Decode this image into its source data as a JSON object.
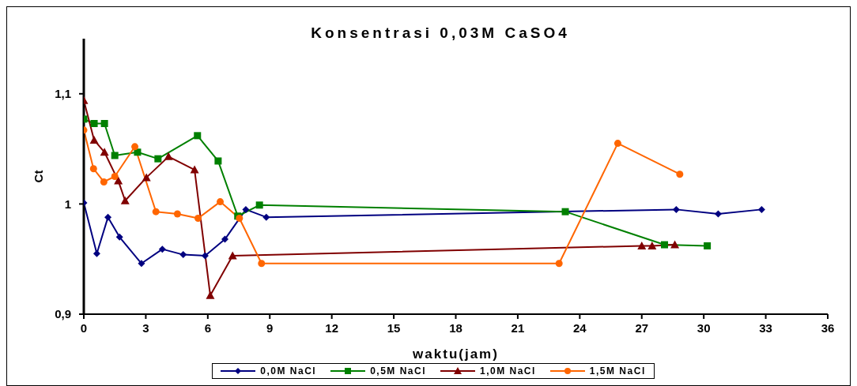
{
  "chart_data": {
    "type": "line",
    "title": "Konsentrasi 0,03M CaSO4",
    "xlabel": "waktu(jam)",
    "ylabel": "Ct",
    "xlim": [
      0,
      36
    ],
    "xticks": [
      0,
      3,
      6,
      9,
      12,
      15,
      18,
      21,
      24,
      27,
      30,
      33,
      36
    ],
    "ylim": [
      0.9,
      1.15
    ],
    "yticks": [
      {
        "value": 0.9,
        "label": "0,9"
      },
      {
        "value": 1,
        "label": "1"
      },
      {
        "value": 1.1,
        "label": "1,1"
      }
    ],
    "grid": false,
    "legend": "bottom",
    "line_style": "solid",
    "series": [
      {
        "name": "0,0M NaCl",
        "color": "#000080",
        "marker": "diamond",
        "x": [
          0,
          0.63,
          1.17,
          1.73,
          2.79,
          3.8,
          4.81,
          5.87,
          6.83,
          7.84,
          8.83,
          28.67,
          30.7,
          32.8
        ],
        "values": [
          1.001,
          0.955,
          0.988,
          0.97,
          0.946,
          0.959,
          0.954,
          0.953,
          0.968,
          0.995,
          0.988,
          0.995,
          0.991,
          0.995
        ]
      },
      {
        "name": "0,5M NaCl",
        "color": "#008000",
        "marker": "square",
        "x": [
          0,
          0.5,
          1.0,
          1.5,
          2.6,
          3.59,
          5.5,
          6.5,
          7.45,
          8.5,
          23.3,
          28.1,
          30.17
        ],
        "values": [
          1.077,
          1.073,
          1.073,
          1.044,
          1.047,
          1.041,
          1.062,
          1.039,
          0.989,
          0.999,
          0.993,
          0.963,
          0.962
        ]
      },
      {
        "name": "1,0M NaCl",
        "color": "#800000",
        "marker": "triangle",
        "x": [
          0,
          0.5,
          1.0,
          1.67,
          2.0,
          3.03,
          4.1,
          5.36,
          6.12,
          7.2,
          27.0,
          27.5,
          28.6
        ],
        "values": [
          1.094,
          1.058,
          1.047,
          1.021,
          1.003,
          1.024,
          1.043,
          1.031,
          0.917,
          0.953,
          0.962,
          0.962,
          0.963
        ]
      },
      {
        "name": "1,5M NaCl",
        "color": "#ff6600",
        "marker": "circle",
        "x": [
          0,
          0.47,
          0.97,
          1.5,
          2.47,
          3.49,
          4.53,
          5.53,
          6.6,
          7.53,
          8.6,
          23.0,
          25.84,
          28.84
        ],
        "values": [
          1.067,
          1.032,
          1.02,
          1.025,
          1.052,
          0.993,
          0.991,
          0.987,
          1.002,
          0.987,
          0.946,
          0.946,
          1.055,
          1.027
        ]
      }
    ]
  }
}
